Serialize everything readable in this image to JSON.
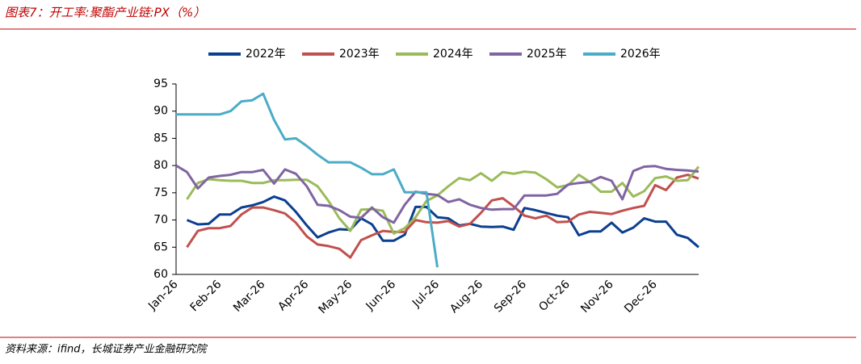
{
  "chart_data": {
    "type": "line",
    "title": "图表7：开工率:聚酯产业链:PX（%）",
    "source": "资料来源：ifind，长城证券产业金融研究院",
    "categories": [
      "Jan-26",
      null,
      null,
      null,
      "Feb-26",
      null,
      null,
      null,
      "Mar-26",
      null,
      null,
      null,
      "Apr-26",
      null,
      null,
      null,
      "May-26",
      null,
      null,
      null,
      "Jun-26",
      null,
      null,
      null,
      "Jul-26",
      null,
      null,
      null,
      "Aug-26",
      null,
      null,
      null,
      "Sep-26",
      null,
      null,
      null,
      "Oct-26",
      null,
      null,
      null,
      "Nov-26",
      null,
      null,
      null,
      "Dec-26",
      null,
      null,
      null,
      null
    ],
    "ylim": [
      60,
      95
    ],
    "yticks": [
      60,
      65,
      70,
      75,
      80,
      85,
      90,
      95
    ],
    "series": [
      {
        "name": "2022年",
        "color": "#0b3f8f",
        "values": [
          null,
          70,
          69.2,
          69.3,
          71,
          71,
          72.3,
          72.7,
          73.3,
          74.3,
          73.6,
          71.5,
          69,
          66.8,
          67.7,
          68.3,
          68.2,
          70.3,
          69.2,
          66.2,
          66.2,
          67.3,
          72.4,
          72.4,
          70.5,
          70.3,
          69,
          69.3,
          68.8,
          68.7,
          68.8,
          68.2,
          72.2,
          71.8,
          71.3,
          70.8,
          70.5,
          67.2,
          67.9,
          67.9,
          69.5,
          67.7,
          68.6,
          70.3,
          69.7,
          69.7,
          67.3,
          66.7,
          65
        ]
      },
      {
        "name": "2023年",
        "color": "#c0504d",
        "values": [
          null,
          65,
          68,
          68.5,
          68.5,
          68.9,
          71,
          72.3,
          72.3,
          71.8,
          71.2,
          69.5,
          67,
          65.5,
          65.2,
          64.7,
          63.1,
          66.3,
          67.2,
          68,
          67.8,
          67.8,
          70,
          69.6,
          69.5,
          69.8,
          68.8,
          69.3,
          71.3,
          73.6,
          74,
          72.5,
          70.8,
          70.3,
          70.8,
          69.6,
          69.7,
          71,
          71.5,
          71.3,
          71.1,
          71.7,
          72.2,
          72.6,
          76.4,
          75.5,
          77.8,
          78.3,
          77.6
        ]
      },
      {
        "name": "2024年",
        "color": "#9bbb59",
        "values": [
          null,
          73.8,
          76.8,
          77.5,
          77.3,
          77.2,
          77.2,
          76.8,
          76.8,
          77.3,
          77.3,
          77.4,
          77.4,
          76.2,
          73.5,
          70.3,
          68,
          71.9,
          72,
          71.7,
          67.5,
          68.5,
          70.5,
          73.5,
          74.5,
          76.2,
          77.7,
          77.3,
          78.6,
          77.2,
          78.8,
          78.5,
          78.9,
          78.7,
          77.5,
          76,
          76.4,
          78.3,
          77,
          75.2,
          75.2,
          76.8,
          74.3,
          75.3,
          77.7,
          78,
          77.2,
          77.3,
          79.8
        ]
      },
      {
        "name": "2025年",
        "color": "#8064a2",
        "values": [
          80,
          78.8,
          75.8,
          77.8,
          78.1,
          78.3,
          78.8,
          78.8,
          79.2,
          76.7,
          79.3,
          78.5,
          76.2,
          72.8,
          72.6,
          71.8,
          70.6,
          70.4,
          72.3,
          70.5,
          69.5,
          72.8,
          75.2,
          74.8,
          74.6,
          73.3,
          73.8,
          72.8,
          72.2,
          71.9,
          72,
          72,
          74.5,
          74.5,
          74.5,
          74.8,
          76.5,
          76.8,
          77,
          77.9,
          77.2,
          73.8,
          79,
          79.8,
          79.9,
          79.4,
          79.2,
          79.1,
          78.9
        ]
      },
      {
        "name": "2026年",
        "color": "#4bacc6",
        "values": [
          89.4,
          89.4,
          89.4,
          89.4,
          89.4,
          90,
          91.8,
          92,
          93.2,
          88.4,
          84.8,
          85,
          83.6,
          82,
          80.6,
          80.6,
          80.6,
          79.6,
          78.4,
          78.4,
          79.3,
          75.1,
          75.1,
          75.1,
          61.3,
          null,
          null,
          null,
          null,
          null,
          null,
          null,
          null,
          null,
          null,
          null,
          null,
          null,
          null,
          null,
          null,
          null,
          null,
          null,
          null,
          null,
          null,
          null,
          null
        ]
      }
    ]
  }
}
